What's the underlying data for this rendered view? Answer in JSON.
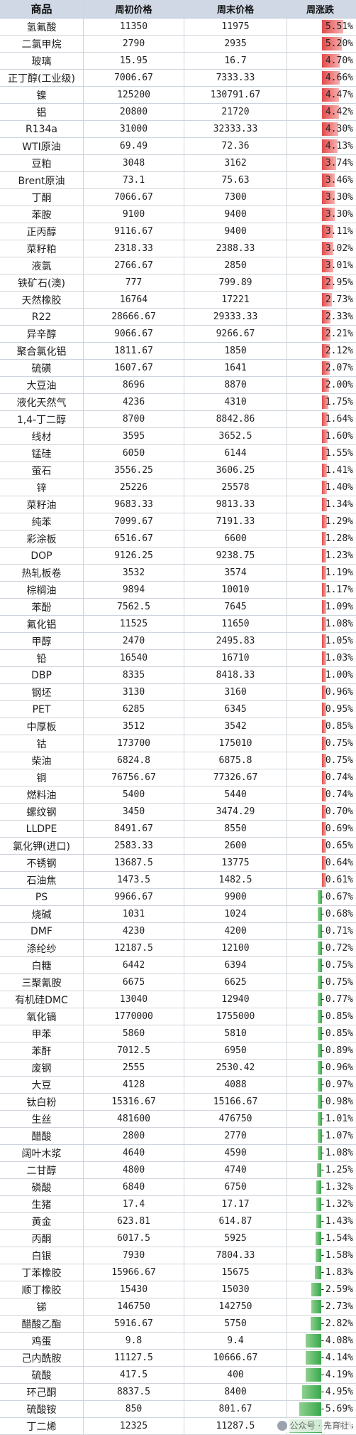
{
  "headers": [
    "商品",
    "周初价格",
    "周末价格",
    "周涨跌"
  ],
  "rows": [
    {
      "name": "氢氟酸",
      "start": "11350",
      "end": "11975",
      "chg": "5.51%",
      "pct": 5.51
    },
    {
      "name": "二氯甲烷",
      "start": "2790",
      "end": "2935",
      "chg": "5.20%",
      "pct": 5.2
    },
    {
      "name": "玻璃",
      "start": "15.95",
      "end": "16.7",
      "chg": "4.70%",
      "pct": 4.7
    },
    {
      "name": "正丁醇(工业级)",
      "start": "7006.67",
      "end": "7333.33",
      "chg": "4.66%",
      "pct": 4.66
    },
    {
      "name": "镍",
      "start": "125200",
      "end": "130791.67",
      "chg": "4.47%",
      "pct": 4.47
    },
    {
      "name": "铝",
      "start": "20800",
      "end": "21720",
      "chg": "4.42%",
      "pct": 4.42
    },
    {
      "name": "R134a",
      "start": "31000",
      "end": "32333.33",
      "chg": "4.30%",
      "pct": 4.3
    },
    {
      "name": "WTI原油",
      "start": "69.49",
      "end": "72.36",
      "chg": "4.13%",
      "pct": 4.13
    },
    {
      "name": "豆粕",
      "start": "3048",
      "end": "3162",
      "chg": "3.74%",
      "pct": 3.74
    },
    {
      "name": "Brent原油",
      "start": "73.1",
      "end": "75.63",
      "chg": "3.46%",
      "pct": 3.46
    },
    {
      "name": "丁酮",
      "start": "7066.67",
      "end": "7300",
      "chg": "3.30%",
      "pct": 3.3
    },
    {
      "name": "苯胺",
      "start": "9100",
      "end": "9400",
      "chg": "3.30%",
      "pct": 3.3
    },
    {
      "name": "正丙醇",
      "start": "9116.67",
      "end": "9400",
      "chg": "3.11%",
      "pct": 3.11
    },
    {
      "name": "菜籽粕",
      "start": "2318.33",
      "end": "2388.33",
      "chg": "3.02%",
      "pct": 3.02
    },
    {
      "name": "液氯",
      "start": "2766.67",
      "end": "2850",
      "chg": "3.01%",
      "pct": 3.01
    },
    {
      "name": "铁矿石(澳)",
      "start": "777",
      "end": "799.89",
      "chg": "2.95%",
      "pct": 2.95
    },
    {
      "name": "天然橡胶",
      "start": "16764",
      "end": "17221",
      "chg": "2.73%",
      "pct": 2.73
    },
    {
      "name": "R22",
      "start": "28666.67",
      "end": "29333.33",
      "chg": "2.33%",
      "pct": 2.33
    },
    {
      "name": "异辛醇",
      "start": "9066.67",
      "end": "9266.67",
      "chg": "2.21%",
      "pct": 2.21
    },
    {
      "name": "聚合氯化铝",
      "start": "1811.67",
      "end": "1850",
      "chg": "2.12%",
      "pct": 2.12
    },
    {
      "name": "硫磺",
      "start": "1607.67",
      "end": "1641",
      "chg": "2.07%",
      "pct": 2.07
    },
    {
      "name": "大豆油",
      "start": "8696",
      "end": "8870",
      "chg": "2.00%",
      "pct": 2.0
    },
    {
      "name": "液化天然气",
      "start": "4236",
      "end": "4310",
      "chg": "1.75%",
      "pct": 1.75
    },
    {
      "name": "1,4-丁二醇",
      "start": "8700",
      "end": "8842.86",
      "chg": "1.64%",
      "pct": 1.64
    },
    {
      "name": "线材",
      "start": "3595",
      "end": "3652.5",
      "chg": "1.60%",
      "pct": 1.6
    },
    {
      "name": "锰硅",
      "start": "6050",
      "end": "6144",
      "chg": "1.55%",
      "pct": 1.55
    },
    {
      "name": "萤石",
      "start": "3556.25",
      "end": "3606.25",
      "chg": "1.41%",
      "pct": 1.41
    },
    {
      "name": "锌",
      "start": "25226",
      "end": "25578",
      "chg": "1.40%",
      "pct": 1.4
    },
    {
      "name": "菜籽油",
      "start": "9683.33",
      "end": "9813.33",
      "chg": "1.34%",
      "pct": 1.34
    },
    {
      "name": "纯苯",
      "start": "7099.67",
      "end": "7191.33",
      "chg": "1.29%",
      "pct": 1.29
    },
    {
      "name": "彩涂板",
      "start": "6516.67",
      "end": "6600",
      "chg": "1.28%",
      "pct": 1.28
    },
    {
      "name": "DOP",
      "start": "9126.25",
      "end": "9238.75",
      "chg": "1.23%",
      "pct": 1.23
    },
    {
      "name": "热轧板卷",
      "start": "3532",
      "end": "3574",
      "chg": "1.19%",
      "pct": 1.19
    },
    {
      "name": "棕榈油",
      "start": "9894",
      "end": "10010",
      "chg": "1.17%",
      "pct": 1.17
    },
    {
      "name": "苯酚",
      "start": "7562.5",
      "end": "7645",
      "chg": "1.09%",
      "pct": 1.09
    },
    {
      "name": "氟化铝",
      "start": "11525",
      "end": "11650",
      "chg": "1.08%",
      "pct": 1.08
    },
    {
      "name": "甲醇",
      "start": "2470",
      "end": "2495.83",
      "chg": "1.05%",
      "pct": 1.05
    },
    {
      "name": "铅",
      "start": "16540",
      "end": "16710",
      "chg": "1.03%",
      "pct": 1.03
    },
    {
      "name": "DBP",
      "start": "8335",
      "end": "8418.33",
      "chg": "1.00%",
      "pct": 1.0
    },
    {
      "name": "钢坯",
      "start": "3130",
      "end": "3160",
      "chg": "0.96%",
      "pct": 0.96
    },
    {
      "name": "PET",
      "start": "6285",
      "end": "6345",
      "chg": "0.95%",
      "pct": 0.95
    },
    {
      "name": "中厚板",
      "start": "3512",
      "end": "3542",
      "chg": "0.85%",
      "pct": 0.85
    },
    {
      "name": "钴",
      "start": "173700",
      "end": "175010",
      "chg": "0.75%",
      "pct": 0.75
    },
    {
      "name": "柴油",
      "start": "6824.8",
      "end": "6875.8",
      "chg": "0.75%",
      "pct": 0.75
    },
    {
      "name": "铜",
      "start": "76756.67",
      "end": "77326.67",
      "chg": "0.74%",
      "pct": 0.74
    },
    {
      "name": "燃料油",
      "start": "5400",
      "end": "5440",
      "chg": "0.74%",
      "pct": 0.74
    },
    {
      "name": "螺纹钢",
      "start": "3450",
      "end": "3474.29",
      "chg": "0.70%",
      "pct": 0.7
    },
    {
      "name": "LLDPE",
      "start": "8491.67",
      "end": "8550",
      "chg": "0.69%",
      "pct": 0.69
    },
    {
      "name": "氯化钾(进口)",
      "start": "2583.33",
      "end": "2600",
      "chg": "0.65%",
      "pct": 0.65
    },
    {
      "name": "不锈钢",
      "start": "13687.5",
      "end": "13775",
      "chg": "0.64%",
      "pct": 0.64
    },
    {
      "name": "石油焦",
      "start": "1473.5",
      "end": "1482.5",
      "chg": "0.61%",
      "pct": 0.61
    },
    {
      "name": "PS",
      "start": "9966.67",
      "end": "9900",
      "chg": "-0.67%",
      "pct": -0.67
    },
    {
      "name": "烧碱",
      "start": "1031",
      "end": "1024",
      "chg": "-0.68%",
      "pct": -0.68
    },
    {
      "name": "DMF",
      "start": "4230",
      "end": "4200",
      "chg": "-0.71%",
      "pct": -0.71
    },
    {
      "name": "涤纶纱",
      "start": "12187.5",
      "end": "12100",
      "chg": "-0.72%",
      "pct": -0.72
    },
    {
      "name": "白糖",
      "start": "6442",
      "end": "6394",
      "chg": "-0.75%",
      "pct": -0.75
    },
    {
      "name": "三聚氰胺",
      "start": "6675",
      "end": "6625",
      "chg": "-0.75%",
      "pct": -0.75
    },
    {
      "name": "有机硅DMC",
      "start": "13040",
      "end": "12940",
      "chg": "-0.77%",
      "pct": -0.77
    },
    {
      "name": "氧化镝",
      "start": "1770000",
      "end": "1755000",
      "chg": "-0.85%",
      "pct": -0.85
    },
    {
      "name": "甲苯",
      "start": "5860",
      "end": "5810",
      "chg": "-0.85%",
      "pct": -0.85
    },
    {
      "name": "苯酐",
      "start": "7012.5",
      "end": "6950",
      "chg": "-0.89%",
      "pct": -0.89
    },
    {
      "name": "废钢",
      "start": "2555",
      "end": "2530.42",
      "chg": "-0.96%",
      "pct": -0.96
    },
    {
      "name": "大豆",
      "start": "4128",
      "end": "4088",
      "chg": "-0.97%",
      "pct": -0.97
    },
    {
      "name": "钛白粉",
      "start": "15316.67",
      "end": "15166.67",
      "chg": "-0.98%",
      "pct": -0.98
    },
    {
      "name": "生丝",
      "start": "481600",
      "end": "476750",
      "chg": "-1.01%",
      "pct": -1.01
    },
    {
      "name": "醋酸",
      "start": "2800",
      "end": "2770",
      "chg": "-1.07%",
      "pct": -1.07
    },
    {
      "name": "阔叶木浆",
      "start": "4640",
      "end": "4590",
      "chg": "-1.08%",
      "pct": -1.08
    },
    {
      "name": "二甘醇",
      "start": "4800",
      "end": "4740",
      "chg": "-1.25%",
      "pct": -1.25
    },
    {
      "name": "磷酸",
      "start": "6840",
      "end": "6750",
      "chg": "-1.32%",
      "pct": -1.32
    },
    {
      "name": "生猪",
      "start": "17.4",
      "end": "17.17",
      "chg": "-1.32%",
      "pct": -1.32
    },
    {
      "name": "黄金",
      "start": "623.81",
      "end": "614.87",
      "chg": "-1.43%",
      "pct": -1.43
    },
    {
      "name": "丙酮",
      "start": "6017.5",
      "end": "5925",
      "chg": "-1.54%",
      "pct": -1.54
    },
    {
      "name": "白银",
      "start": "7930",
      "end": "7804.33",
      "chg": "-1.58%",
      "pct": -1.58
    },
    {
      "name": "丁苯橡胶",
      "start": "15966.67",
      "end": "15675",
      "chg": "-1.83%",
      "pct": -1.83
    },
    {
      "name": "顺丁橡胶",
      "start": "15430",
      "end": "15030",
      "chg": "-2.59%",
      "pct": -2.59
    },
    {
      "name": "锑",
      "start": "146750",
      "end": "142750",
      "chg": "-2.73%",
      "pct": -2.73
    },
    {
      "name": "醋酸乙酯",
      "start": "5916.67",
      "end": "5750",
      "chg": "-2.82%",
      "pct": -2.82
    },
    {
      "name": "鸡蛋",
      "start": "9.8",
      "end": "9.4",
      "chg": "-4.08%",
      "pct": -4.08
    },
    {
      "name": "己内酰胺",
      "start": "11127.5",
      "end": "10666.67",
      "chg": "-4.14%",
      "pct": -4.14
    },
    {
      "name": "硫酸",
      "start": "417.5",
      "end": "400",
      "chg": "-4.19%",
      "pct": -4.19
    },
    {
      "name": "环己酮",
      "start": "8837.5",
      "end": "8400",
      "chg": "-4.95%",
      "pct": -4.95
    },
    {
      "name": "硫酸铵",
      "start": "850",
      "end": "801.67",
      "chg": "-5.69%",
      "pct": -5.69
    },
    {
      "name": "丁二烯",
      "start": "12325",
      "end": "11287.5",
      "chg": "-8.42%",
      "pct": -8.42
    }
  ],
  "colors": {
    "positive": "#e14a4a",
    "negative": "#36a84a",
    "header": "#cfd8e4"
  },
  "watermark": {
    "icon": "wechat-icon",
    "text": "公众号 · 先育社"
  }
}
